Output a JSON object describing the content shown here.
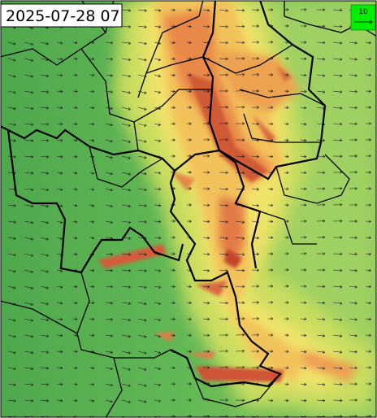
{
  "timestamp": "2025-07-28 07",
  "legend": {
    "label": "10"
  }
}
